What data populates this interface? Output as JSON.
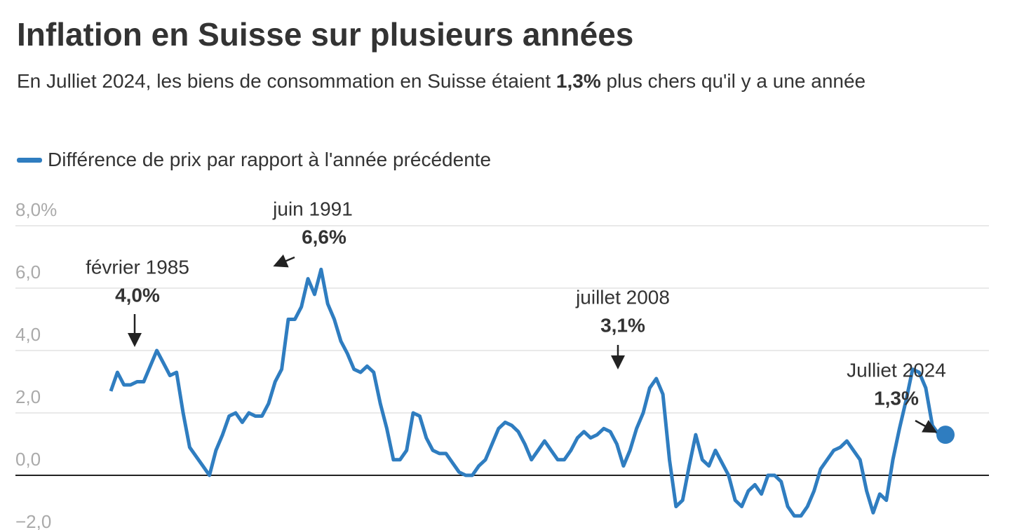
{
  "chart_data": {
    "type": "line",
    "title": "Inflation en Suisse sur plusieurs années",
    "subtitle": [
      "En Julliet 2024, les biens de consommation en Suisse étaient ",
      "1,3%",
      " plus chers qu'il y a une année"
    ],
    "series": [
      {
        "name": "Différence de prix par rapport à l'année précédente",
        "color": "#2f7dc0",
        "values": [
          2.7,
          3.3,
          2.9,
          2.9,
          3.0,
          3.0,
          3.5,
          4.0,
          3.6,
          3.2,
          3.3,
          2.0,
          0.9,
          0.6,
          0.3,
          0.0,
          0.8,
          1.3,
          1.9,
          2.0,
          1.7,
          2.0,
          1.9,
          1.9,
          2.3,
          3.0,
          3.4,
          5.0,
          5.0,
          5.4,
          6.3,
          5.8,
          6.6,
          5.5,
          5.0,
          4.3,
          3.9,
          3.4,
          3.3,
          3.5,
          3.3,
          2.3,
          1.5,
          0.5,
          0.5,
          0.8,
          2.0,
          1.9,
          1.2,
          0.8,
          0.7,
          0.7,
          0.4,
          0.1,
          0.0,
          0.0,
          0.3,
          0.5,
          1.0,
          1.5,
          1.7,
          1.6,
          1.4,
          1.0,
          0.5,
          0.8,
          1.1,
          0.8,
          0.5,
          0.5,
          0.8,
          1.2,
          1.4,
          1.2,
          1.3,
          1.5,
          1.4,
          1.0,
          0.3,
          0.8,
          1.5,
          2.0,
          2.8,
          3.1,
          2.6,
          0.5,
          -1.0,
          -0.8,
          0.3,
          1.3,
          0.5,
          0.3,
          0.8,
          0.4,
          0.0,
          -0.8,
          -1.0,
          -0.5,
          -0.3,
          -0.6,
          0.0,
          0.0,
          -0.2,
          -1.0,
          -1.3,
          -1.3,
          -1.0,
          -0.5,
          0.2,
          0.5,
          0.8,
          0.9,
          1.1,
          0.8,
          0.5,
          -0.5,
          -1.2,
          -0.6,
          -0.8,
          0.5,
          1.5,
          2.4,
          3.4,
          3.3,
          2.8,
          1.6,
          1.3,
          1.3
        ]
      }
    ],
    "ylim": [
      -2,
      8
    ],
    "yticks": [
      {
        "value": -2,
        "label": "−2,0"
      },
      {
        "value": 0,
        "label": "0,0"
      },
      {
        "value": 2,
        "label": "2,0"
      },
      {
        "value": 4,
        "label": "4,0"
      },
      {
        "value": 6,
        "label": "6,0"
      },
      {
        "value": 8,
        "label": "8,0%"
      }
    ],
    "grid": true,
    "annotations": [
      {
        "text": "février 1985",
        "label": "4,0%"
      },
      {
        "text": "juin 1991",
        "label": "6,6%"
      },
      {
        "text": "juillet 2008",
        "label": "3,1%"
      },
      {
        "text": "Julliet 2024",
        "label": "1,3%"
      }
    ]
  }
}
